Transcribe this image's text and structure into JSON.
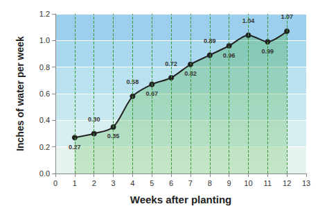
{
  "chart_data": {
    "type": "line",
    "x_label": "Weeks after planting",
    "y_label": "Inches of water per week",
    "x": [
      1,
      2,
      3,
      4,
      5,
      6,
      7,
      8,
      9,
      10,
      11,
      12
    ],
    "values": [
      0.27,
      0.3,
      0.35,
      0.58,
      0.67,
      0.72,
      0.82,
      0.89,
      0.96,
      1.04,
      0.99,
      1.07
    ],
    "value_labels": [
      "0.27",
      "0.30",
      "0.35",
      "0.58",
      "0.67",
      "0.72",
      "0.82",
      "0.89",
      "0.96",
      "1.04",
      "0.99",
      "1.07"
    ],
    "color": "#222222",
    "marker": "circle",
    "data_labels": true,
    "grid": true,
    "xlim": [
      0,
      13
    ],
    "xticks": [
      0,
      1,
      2,
      3,
      4,
      5,
      6,
      7,
      8,
      9,
      10,
      11,
      12,
      13
    ],
    "ylim": [
      0,
      1.2
    ],
    "yticks": [
      {
        "value": 0,
        "label": "0.0"
      },
      0.2,
      0.4,
      0.6,
      0.8,
      {
        "value": 1,
        "label": "1.0"
      },
      1.2
    ]
  }
}
